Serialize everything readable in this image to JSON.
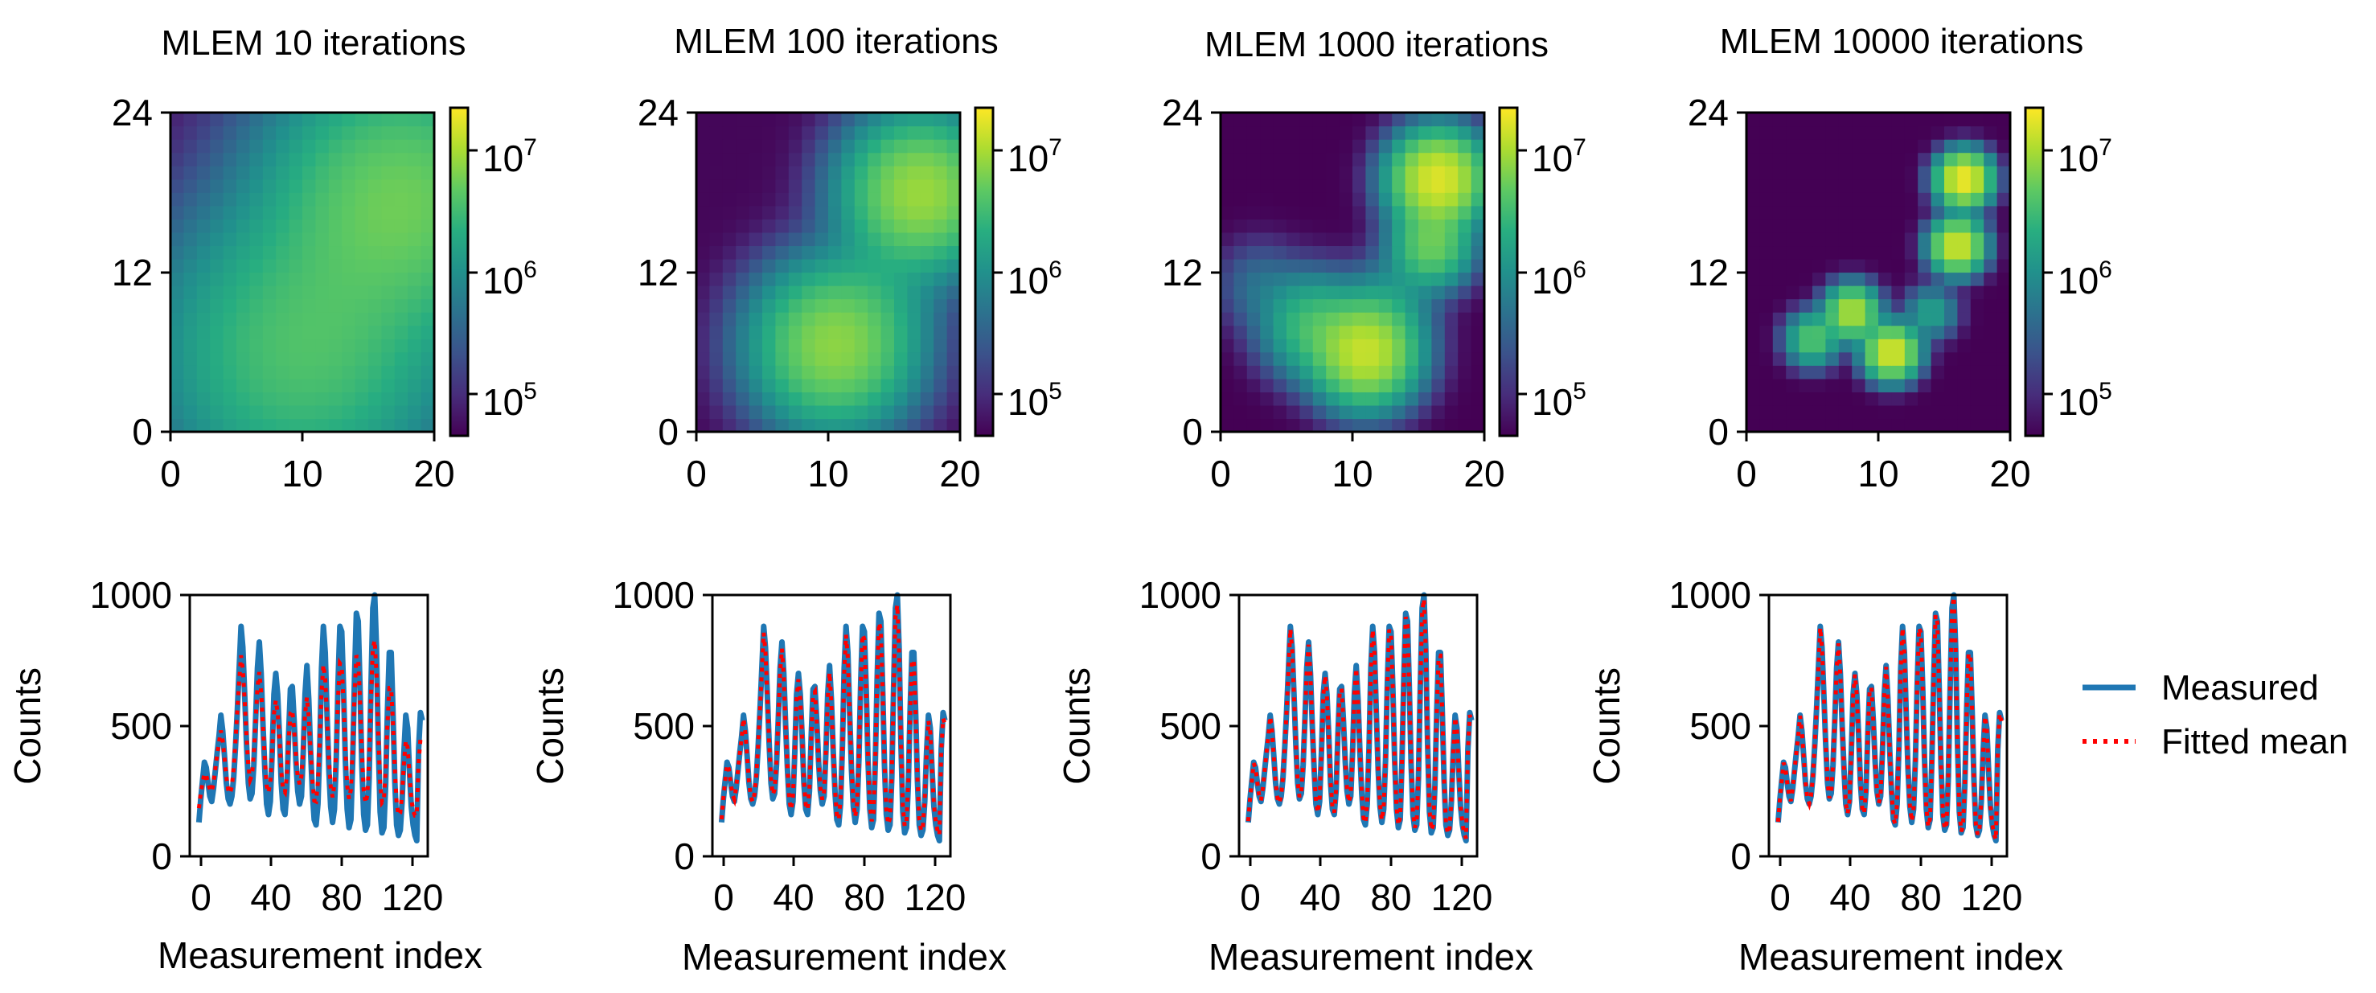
{
  "chart_data": [
    {
      "type": "heatmap",
      "title": "MLEM 10 iterations",
      "x_range": [
        0,
        20
      ],
      "y_range": [
        0,
        24
      ],
      "x_ticks": [
        "0",
        "10",
        "20"
      ],
      "y_ticks": [
        "0",
        "12",
        "24"
      ],
      "colorbar": {
        "scale": "log",
        "range": [
          50000,
          20000000
        ],
        "tick_base": "10",
        "tick_exponents": [
          "5",
          "6",
          "7"
        ]
      },
      "color_map": "viridis",
      "grid_shape": [
        24,
        20
      ],
      "sources": [
        {
          "x": 10,
          "y": 6,
          "value": 3500000,
          "sigma": 6.0
        },
        {
          "x": 17.5,
          "y": 17.5,
          "value": 5000000,
          "sigma": 5.5
        }
      ],
      "background": 60000
    },
    {
      "type": "heatmap",
      "title": "MLEM 100 iterations",
      "x_range": [
        0,
        20
      ],
      "y_range": [
        0,
        24
      ],
      "x_ticks": [
        "0",
        "10",
        "20"
      ],
      "y_ticks": [
        "0",
        "12",
        "24"
      ],
      "colorbar": {
        "scale": "log",
        "range": [
          50000,
          20000000
        ],
        "tick_base": "10",
        "tick_exponents": [
          "5",
          "6",
          "7"
        ]
      },
      "color_map": "viridis",
      "grid_shape": [
        24,
        20
      ],
      "sources": [
        {
          "x": 10.5,
          "y": 6.5,
          "value": 7000000,
          "sigma": 3.2
        },
        {
          "x": 17,
          "y": 18,
          "value": 8000000,
          "sigma": 3.0
        },
        {
          "x": 14,
          "y": 11,
          "value": 600000,
          "sigma": 2.5
        }
      ],
      "background": 55000
    },
    {
      "type": "heatmap",
      "title": "MLEM 1000 iterations",
      "x_range": [
        0,
        20
      ],
      "y_range": [
        0,
        24
      ],
      "x_ticks": [
        "0",
        "10",
        "20"
      ],
      "y_ticks": [
        "0",
        "12",
        "24"
      ],
      "colorbar": {
        "scale": "log",
        "range": [
          50000,
          20000000
        ],
        "tick_base": "10",
        "tick_exponents": [
          "5",
          "6",
          "7"
        ]
      },
      "color_map": "viridis",
      "grid_shape": [
        24,
        20
      ],
      "sources": [
        {
          "x": 11,
          "y": 6,
          "value": 12000000,
          "sigma": 2.0
        },
        {
          "x": 7,
          "y": 8,
          "value": 3000000,
          "sigma": 2.0
        },
        {
          "x": 16.5,
          "y": 19,
          "value": 15000000,
          "sigma": 1.8
        },
        {
          "x": 16,
          "y": 14,
          "value": 5000000,
          "sigma": 1.6
        },
        {
          "x": 13,
          "y": 10,
          "value": 900000,
          "sigma": 1.8
        },
        {
          "x": 3,
          "y": 11,
          "value": 400000,
          "sigma": 1.8
        }
      ],
      "background": 50000
    },
    {
      "type": "heatmap",
      "title": "MLEM 10000 iterations",
      "x_range": [
        0,
        20
      ],
      "y_range": [
        0,
        24
      ],
      "x_ticks": [
        "0",
        "10",
        "20"
      ],
      "y_ticks": [
        "0",
        "12",
        "24"
      ],
      "colorbar": {
        "scale": "log",
        "range": [
          50000,
          20000000
        ],
        "tick_base": "10",
        "tick_exponents": [
          "5",
          "6",
          "7"
        ]
      },
      "color_map": "viridis",
      "grid_shape": [
        24,
        20
      ],
      "sources": [
        {
          "x": 11,
          "y": 6,
          "value": 15000000,
          "sigma": 1.0
        },
        {
          "x": 8,
          "y": 9,
          "value": 10000000,
          "sigma": 1.0
        },
        {
          "x": 16.5,
          "y": 19,
          "value": 18000000,
          "sigma": 1.0
        },
        {
          "x": 16,
          "y": 14,
          "value": 14000000,
          "sigma": 1.0
        },
        {
          "x": 5,
          "y": 7,
          "value": 4000000,
          "sigma": 1.0
        },
        {
          "x": 14,
          "y": 9,
          "value": 1500000,
          "sigma": 1.0
        }
      ],
      "background": 50000
    },
    {
      "type": "line",
      "xlabel": "Measurement index",
      "ylabel": "Counts",
      "xlim": [
        -5,
        125
      ],
      "ylim": [
        0,
        1000
      ],
      "x_ticks": [
        "0",
        "40",
        "80",
        "120"
      ],
      "y_ticks": [
        "0",
        "500",
        "1000"
      ],
      "series": [
        {
          "name": "Measured",
          "color": "#1f77b4",
          "style": "solid"
        },
        {
          "name": "Fitted mean",
          "color": "#ff0000",
          "style": "dotted",
          "smoothing": 0.55
        }
      ]
    },
    {
      "type": "line",
      "xlabel": "Measurement index",
      "ylabel": "Counts",
      "xlim": [
        -5,
        125
      ],
      "ylim": [
        0,
        1000
      ],
      "x_ticks": [
        "0",
        "40",
        "80",
        "120"
      ],
      "y_ticks": [
        "0",
        "500",
        "1000"
      ],
      "series": [
        {
          "name": "Measured",
          "color": "#1f77b4",
          "style": "solid"
        },
        {
          "name": "Fitted mean",
          "color": "#ff0000",
          "style": "dotted",
          "smoothing": 0.9
        }
      ]
    },
    {
      "type": "line",
      "xlabel": "Measurement index",
      "ylabel": "Counts",
      "xlim": [
        -5,
        125
      ],
      "ylim": [
        0,
        1000
      ],
      "x_ticks": [
        "0",
        "40",
        "80",
        "120"
      ],
      "y_ticks": [
        "0",
        "500",
        "1000"
      ],
      "series": [
        {
          "name": "Measured",
          "color": "#1f77b4",
          "style": "solid"
        },
        {
          "name": "Fitted mean",
          "color": "#ff0000",
          "style": "dotted",
          "smoothing": 0.96
        }
      ]
    },
    {
      "type": "line",
      "xlabel": "Measurement index",
      "ylabel": "Counts",
      "xlim": [
        -5,
        125
      ],
      "ylim": [
        0,
        1000
      ],
      "x_ticks": [
        "0",
        "40",
        "80",
        "120"
      ],
      "y_ticks": [
        "0",
        "500",
        "1000"
      ],
      "series": [
        {
          "name": "Measured",
          "color": "#1f77b4",
          "style": "solid"
        },
        {
          "name": "Fitted mean",
          "color": "#ff0000",
          "style": "dotted",
          "smoothing": 0.98
        }
      ]
    }
  ],
  "measured_counts": [
    130,
    220,
    290,
    360,
    340,
    280,
    230,
    210,
    260,
    330,
    400,
    460,
    540,
    480,
    380,
    280,
    220,
    200,
    230,
    300,
    420,
    560,
    720,
    880,
    800,
    620,
    430,
    280,
    220,
    240,
    350,
    530,
    720,
    820,
    700,
    500,
    330,
    200,
    160,
    210,
    400,
    620,
    700,
    620,
    460,
    280,
    180,
    160,
    250,
    470,
    640,
    650,
    520,
    360,
    250,
    200,
    230,
    400,
    620,
    730,
    600,
    400,
    240,
    140,
    120,
    200,
    420,
    720,
    880,
    780,
    540,
    330,
    190,
    130,
    180,
    370,
    660,
    880,
    860,
    640,
    370,
    180,
    110,
    140,
    360,
    680,
    930,
    900,
    640,
    350,
    160,
    100,
    120,
    300,
    650,
    950,
    1000,
    800,
    430,
    170,
    90,
    110,
    270,
    560,
    780,
    780,
    560,
    290,
    120,
    80,
    100,
    210,
    400,
    540,
    490,
    330,
    190,
    120,
    80,
    60,
    410,
    550,
    520
  ],
  "legend": {
    "measured": "Measured",
    "fitted": "Fitted mean"
  }
}
